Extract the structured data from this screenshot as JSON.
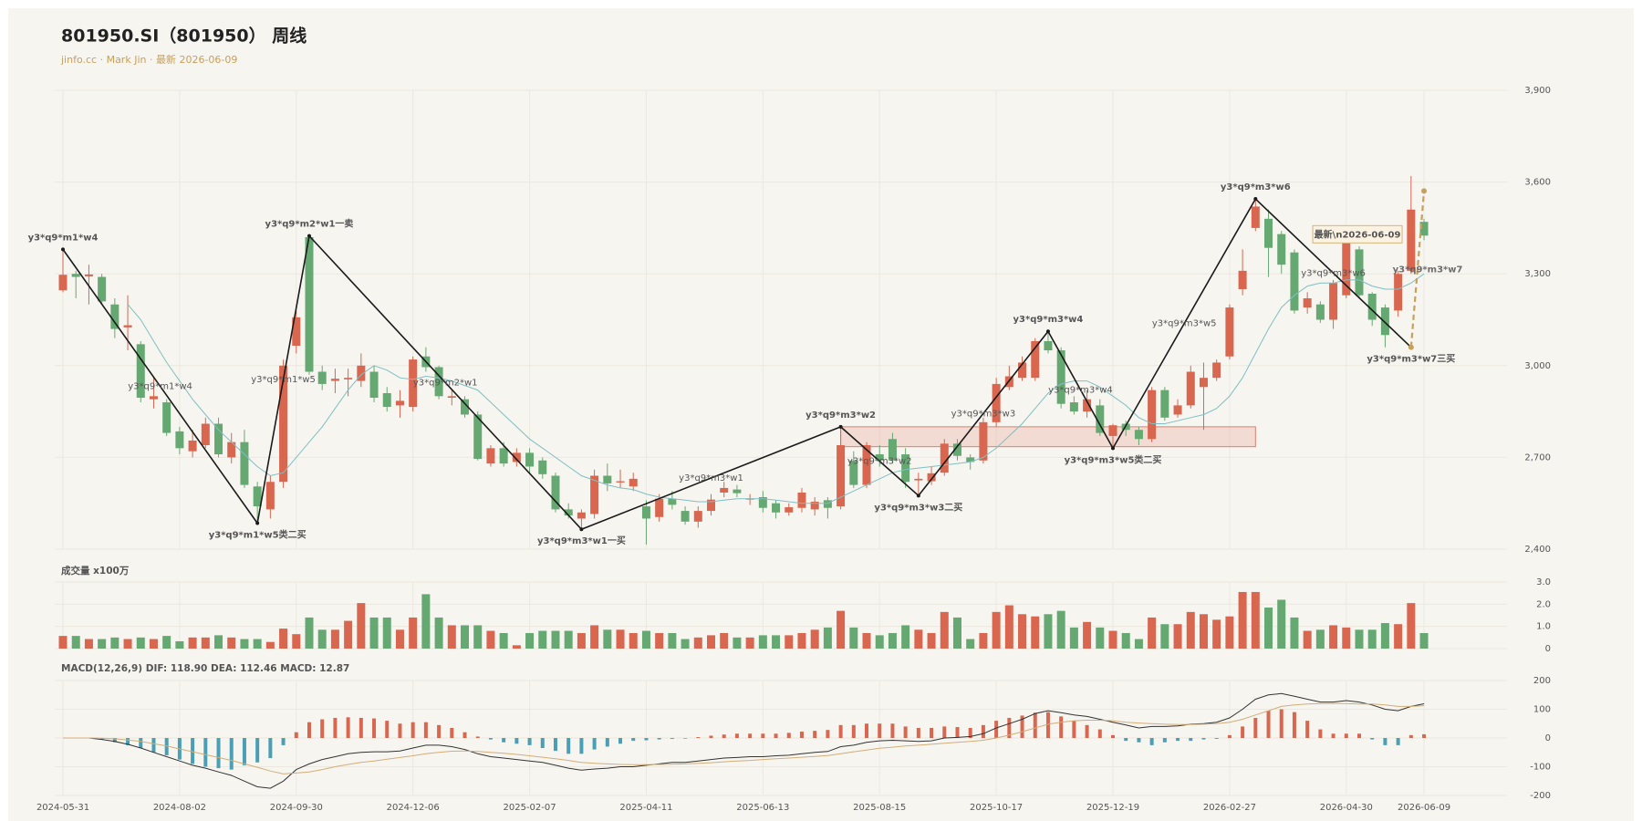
{
  "chart_data": {
    "type": "candlestick",
    "title": "801950.SI（801950） 周线",
    "subtitle": "jinfo.cc · Mark Jin · 最新 2026-06-09",
    "categories": [
      "2024-05-31",
      null,
      null,
      null,
      null,
      null,
      null,
      null,
      null,
      "2024-08-02",
      null,
      null,
      null,
      null,
      null,
      null,
      null,
      null,
      "2024-09-30",
      null,
      null,
      null,
      null,
      null,
      null,
      null,
      null,
      "2024-12-06",
      null,
      null,
      null,
      null,
      null,
      null,
      null,
      null,
      "2025-02-07",
      null,
      null,
      null,
      null,
      null,
      null,
      null,
      null,
      "2025-04-11",
      null,
      null,
      null,
      null,
      null,
      null,
      null,
      null,
      "2025-06-13",
      null,
      null,
      null,
      null,
      null,
      null,
      null,
      null,
      "2025-08-15",
      null,
      null,
      null,
      null,
      null,
      null,
      null,
      null,
      "2025-10-17",
      null,
      null,
      null,
      null,
      null,
      null,
      null,
      null,
      "2025-12-19",
      null,
      null,
      null,
      null,
      null,
      null,
      null,
      null,
      "2026-02-27",
      null,
      null,
      null,
      null,
      null,
      null,
      null,
      null,
      "2026-04-30",
      null,
      null,
      null,
      null,
      null,
      "2026-06-09"
    ],
    "open": [
      3246,
      3300,
      3292,
      3290,
      3200,
      3125,
      3070,
      2890,
      2880,
      2785,
      2720,
      2740,
      2810,
      2700,
      2750,
      2605,
      2530,
      2620,
      3065,
      3420,
      2980,
      2950,
      2955,
      2950,
      2980,
      2910,
      2870,
      2865,
      3030,
      2995,
      2895,
      2890,
      2840,
      2680,
      2730,
      2685,
      2715,
      2690,
      2640,
      2530,
      2500,
      2515,
      2640,
      2618,
      2605,
      2540,
      2505,
      2565,
      2525,
      2490,
      2525,
      2585,
      2595,
      2562,
      2570,
      2550,
      2520,
      2535,
      2530,
      2560,
      2540,
      2690,
      2610,
      2710,
      2760,
      2710,
      2625,
      2622,
      2650,
      2745,
      2700,
      2690,
      2815,
      2930,
      2960,
      2960,
      3080,
      3050,
      2880,
      2850,
      2870,
      2770,
      2810,
      2790,
      2760,
      2920,
      2840,
      2870,
      2930,
      2960,
      3030,
      3250,
      3450,
      3480,
      3430,
      3370,
      3190,
      3200,
      3150,
      3230,
      3380,
      3235,
      3190,
      3180,
      3310,
      3470
    ],
    "high": [
      3380,
      3310,
      3330,
      3300,
      3220,
      3230,
      3080,
      2960,
      2890,
      2800,
      2790,
      2830,
      2830,
      2780,
      2790,
      2620,
      2640,
      3020,
      3180,
      3424,
      3000,
      2990,
      2990,
      3040,
      3000,
      2930,
      2920,
      3030,
      3060,
      3000,
      2920,
      2900,
      2850,
      2740,
      2750,
      2730,
      2730,
      2700,
      2650,
      2550,
      2530,
      2660,
      2680,
      2660,
      2650,
      2560,
      2580,
      2590,
      2540,
      2540,
      2580,
      2620,
      2610,
      2580,
      2590,
      2560,
      2550,
      2600,
      2570,
      2570,
      2800,
      2720,
      2750,
      2740,
      2780,
      2730,
      2650,
      2670,
      2760,
      2760,
      2710,
      2830,
      2960,
      3000,
      3030,
      3090,
      3112,
      3060,
      2900,
      2920,
      2890,
      2810,
      2820,
      2800,
      2930,
      2930,
      2890,
      3000,
      3010,
      3020,
      3200,
      3380,
      3545,
      3510,
      3440,
      3380,
      3240,
      3210,
      3280,
      3410,
      3390,
      3240,
      3200,
      3310,
      3620,
      3480
    ],
    "low": [
      3240,
      3220,
      3200,
      3200,
      3090,
      3050,
      2880,
      2860,
      2770,
      2710,
      2700,
      2730,
      2700,
      2680,
      2600,
      2485,
      2500,
      2600,
      3040,
      2970,
      2920,
      2910,
      2900,
      2930,
      2880,
      2850,
      2830,
      2850,
      2980,
      2890,
      2870,
      2830,
      2690,
      2670,
      2670,
      2670,
      2650,
      2630,
      2520,
      2500,
      2465,
      2500,
      2590,
      2600,
      2590,
      2415,
      2490,
      2530,
      2480,
      2470,
      2510,
      2570,
      2570,
      2545,
      2520,
      2500,
      2510,
      2520,
      2510,
      2500,
      2530,
      2600,
      2600,
      2670,
      2680,
      2600,
      2575,
      2610,
      2640,
      2690,
      2660,
      2680,
      2800,
      2920,
      2950,
      2950,
      3040,
      2860,
      2840,
      2830,
      2770,
      2730,
      2770,
      2740,
      2750,
      2820,
      2830,
      2860,
      2790,
      2950,
      3020,
      3230,
      3440,
      3290,
      3300,
      3170,
      3170,
      3140,
      3120,
      3220,
      3220,
      3130,
      3060,
      3160,
      3300,
      3410
    ],
    "close": [
      3297,
      3290,
      3298,
      3210,
      3120,
      3132,
      2895,
      2900,
      2780,
      2730,
      2755,
      2810,
      2710,
      2750,
      2610,
      2540,
      2620,
      3000,
      3158,
      2980,
      2940,
      2957,
      2960,
      3000,
      2895,
      2865,
      2885,
      3020,
      2995,
      2900,
      2900,
      2840,
      2695,
      2730,
      2680,
      2715,
      2670,
      2645,
      2530,
      2510,
      2520,
      2640,
      2615,
      2622,
      2630,
      2500,
      2565,
      2545,
      2490,
      2525,
      2562,
      2600,
      2583,
      2566,
      2535,
      2520,
      2537,
      2585,
      2555,
      2535,
      2740,
      2610,
      2740,
      2690,
      2690,
      2620,
      2630,
      2648,
      2745,
      2705,
      2685,
      2815,
      2940,
      2965,
      3010,
      3080,
      3050,
      2875,
      2850,
      2890,
      2780,
      2805,
      2790,
      2760,
      2920,
      2830,
      2870,
      2980,
      2960,
      3010,
      3190,
      3310,
      3520,
      3385,
      3330,
      3180,
      3220,
      3150,
      3270,
      3400,
      3230,
      3150,
      3100,
      3300,
      3510,
      3425
    ],
    "up_color": "#d9664f",
    "down_color": "#66a872",
    "ylim": [
      2400,
      3900
    ],
    "yticks": [
      {
        "value": 2400,
        "label": "2,400"
      },
      {
        "value": 2700,
        "label": "2,700"
      },
      {
        "value": 3000,
        "label": "3,000"
      },
      {
        "value": 3300,
        "label": "3,300"
      },
      {
        "value": 3600,
        "label": "3,600"
      },
      {
        "value": 3900,
        "label": "3,900"
      }
    ],
    "ma": {
      "color": "#7fbfc3",
      "values": [
        null,
        null,
        null,
        null,
        null,
        3200,
        3150,
        3080,
        3010,
        2950,
        2890,
        2840,
        2790,
        2750,
        2710,
        2670,
        2640,
        2650,
        2700,
        2750,
        2800,
        2860,
        2920,
        2970,
        3000,
        2985,
        2960,
        2955,
        2965,
        2960,
        2950,
        2935,
        2920,
        2880,
        2840,
        2800,
        2760,
        2730,
        2700,
        2670,
        2640,
        2625,
        2610,
        2600,
        2595,
        2580,
        2570,
        2565,
        2560,
        2555,
        2555,
        2560,
        2565,
        2565,
        2565,
        2560,
        2555,
        2550,
        2550,
        2550,
        2570,
        2590,
        2610,
        2630,
        2650,
        2660,
        2665,
        2670,
        2675,
        2680,
        2685,
        2700,
        2730,
        2770,
        2810,
        2860,
        2910,
        2940,
        2950,
        2950,
        2930,
        2900,
        2870,
        2830,
        2810,
        2810,
        2820,
        2830,
        2840,
        2860,
        2900,
        2960,
        3040,
        3120,
        3190,
        3230,
        3260,
        3270,
        3270,
        3280,
        3280,
        3260,
        3250,
        3250,
        3270,
        3300
      ]
    },
    "zigzag": {
      "color": "#1a1a1a",
      "label_color": "#c9a05a",
      "segment_label_color": "#444444",
      "values": [
        3380,
        null,
        null,
        null,
        null,
        null,
        null,
        null,
        null,
        null,
        null,
        null,
        null,
        null,
        null,
        2485,
        null,
        null,
        null,
        3424,
        null,
        null,
        null,
        null,
        null,
        null,
        null,
        null,
        null,
        null,
        null,
        null,
        null,
        null,
        null,
        null,
        null,
        null,
        null,
        null,
        2465,
        null,
        null,
        null,
        null,
        null,
        null,
        null,
        null,
        null,
        null,
        null,
        null,
        null,
        null,
        null,
        null,
        null,
        null,
        null,
        2800,
        null,
        null,
        null,
        null,
        null,
        2575,
        null,
        null,
        null,
        null,
        null,
        null,
        null,
        null,
        null,
        3112,
        null,
        null,
        null,
        null,
        2730,
        null,
        null,
        null,
        null,
        null,
        null,
        null,
        null,
        null,
        null,
        3545,
        null,
        null,
        null,
        null,
        null,
        null,
        null,
        null,
        null,
        null,
        null,
        3060,
        null,
        null,
        null
      ],
      "labels": [
        "y3*q9*m1*w4",
        null,
        null,
        null,
        null,
        null,
        null,
        null,
        null,
        null,
        null,
        null,
        null,
        null,
        null,
        "y3*q9*m1*w5类二买",
        null,
        null,
        null,
        "y3*q9*m2*w1一卖",
        null,
        null,
        null,
        null,
        null,
        null,
        null,
        null,
        null,
        null,
        null,
        null,
        null,
        null,
        null,
        null,
        null,
        null,
        null,
        null,
        "y3*q9*m3*w1一买",
        null,
        null,
        null,
        null,
        null,
        null,
        null,
        null,
        null,
        null,
        null,
        null,
        null,
        null,
        null,
        null,
        null,
        null,
        null,
        "y3*q9*m3*w2",
        null,
        null,
        null,
        null,
        null,
        "y3*q9*m3*w3二买",
        null,
        null,
        null,
        null,
        null,
        null,
        null,
        null,
        null,
        "y3*q9*m3*w4",
        null,
        null,
        null,
        null,
        "y3*q9*m3*w5类二买",
        null,
        null,
        null,
        null,
        null,
        null,
        null,
        null,
        null,
        null,
        "y3*q9*m3*w6",
        null,
        null,
        null,
        null,
        null,
        null,
        null,
        null,
        null,
        null,
        null,
        "y3*q9*m3*w7三买",
        null,
        null,
        null
      ],
      "segment_labels": [
        "y3*q9*m1*w4",
        "y3*q9*m1*w5",
        "y3*q9*m2*w1",
        "y3*q9*m3*w1",
        "y3*q9*m3*w2",
        "y3*q9*m3*w3",
        "y3*q9*m3*w4",
        "y3*q9*m3*w5",
        "y3*q9*m3*w6"
      ],
      "projection": {
        "value": 3571,
        "label": "y3*q9*m3*w7",
        "color": "#c9a05a"
      }
    },
    "zone": {
      "high": 2800,
      "low": 2735,
      "color": "#e07f6b"
    },
    "latest_label": "最新\\n2026-06-09",
    "volume": {
      "title": "成交量 x100万",
      "values": [
        0.57,
        0.57,
        0.43,
        0.43,
        0.5,
        0.43,
        0.5,
        0.43,
        0.57,
        0.33,
        0.5,
        0.5,
        0.6,
        0.5,
        0.43,
        0.43,
        0.3,
        0.9,
        0.65,
        1.4,
        0.85,
        0.85,
        1.25,
        2.05,
        1.4,
        1.4,
        0.85,
        1.4,
        2.45,
        1.4,
        1.05,
        1.05,
        1.05,
        0.8,
        0.7,
        0.15,
        0.7,
        0.8,
        0.8,
        0.8,
        0.7,
        1.05,
        0.85,
        0.85,
        0.7,
        0.8,
        0.7,
        0.7,
        0.43,
        0.5,
        0.6,
        0.7,
        0.5,
        0.5,
        0.6,
        0.6,
        0.6,
        0.7,
        0.85,
        0.95,
        1.7,
        0.95,
        0.7,
        0.6,
        0.7,
        1.05,
        0.85,
        0.7,
        1.65,
        1.4,
        0.43,
        0.7,
        1.65,
        1.95,
        1.55,
        1.45,
        1.55,
        1.7,
        0.95,
        1.2,
        0.95,
        0.8,
        0.7,
        0.43,
        1.4,
        1.1,
        1.1,
        1.65,
        1.55,
        1.3,
        1.45,
        2.55,
        2.55,
        1.85,
        2.2,
        1.4,
        0.8,
        0.85,
        1.05,
        0.95,
        0.85,
        0.85,
        1.15,
        1.1,
        2.05,
        0.7
      ],
      "ylim": [
        0,
        3
      ],
      "yticks": [
        0,
        {
          "value": 1,
          "label": "1.0"
        },
        {
          "value": 2,
          "label": "2.0"
        },
        {
          "value": 3,
          "label": "3.0"
        }
      ]
    },
    "macd": {
      "title": "MACD(12,26,9) DIF: 118.90 DEA: 112.46 MACD: 12.87",
      "positive_color": "#d9664f",
      "negative_color": "#4a9fb5",
      "hist": [
        0,
        0,
        0,
        -5,
        -15,
        -25,
        -35,
        -50,
        -60,
        -75,
        -90,
        -100,
        -105,
        -110,
        -95,
        -85,
        -70,
        -25,
        20,
        55,
        65,
        70,
        72,
        70,
        68,
        60,
        50,
        55,
        55,
        45,
        35,
        20,
        5,
        -5,
        -15,
        -20,
        -25,
        -35,
        -45,
        -55,
        -55,
        -40,
        -30,
        -20,
        -10,
        -8,
        -5,
        -3,
        -2,
        3,
        8,
        12,
        15,
        15,
        15,
        15,
        18,
        22,
        25,
        28,
        45,
        45,
        50,
        50,
        50,
        40,
        35,
        35,
        40,
        38,
        35,
        45,
        60,
        70,
        78,
        88,
        90,
        75,
        60,
        45,
        30,
        10,
        -10,
        -15,
        -25,
        -15,
        -10,
        -10,
        -5,
        -3,
        10,
        40,
        70,
        95,
        100,
        90,
        60,
        30,
        15,
        15,
        15,
        -5,
        -25,
        -25,
        10,
        12.87
      ],
      "dif": {
        "color": "#333333",
        "values": [
          0,
          0,
          0,
          -5,
          -12,
          -22,
          -35,
          -50,
          -65,
          -80,
          -95,
          -105,
          -118,
          -130,
          -150,
          -170,
          -175,
          -150,
          -110,
          -90,
          -75,
          -65,
          -55,
          -50,
          -48,
          -48,
          -45,
          -35,
          -25,
          -25,
          -30,
          -40,
          -55,
          -65,
          -70,
          -75,
          -80,
          -85,
          -95,
          -105,
          -112,
          -108,
          -105,
          -100,
          -100,
          -95,
          -90,
          -85,
          -85,
          -80,
          -75,
          -70,
          -68,
          -65,
          -65,
          -62,
          -60,
          -55,
          -50,
          -47,
          -30,
          -25,
          -15,
          -10,
          -8,
          -10,
          -12,
          -10,
          0,
          2,
          5,
          15,
          35,
          50,
          65,
          85,
          95,
          88,
          80,
          75,
          65,
          55,
          45,
          35,
          40,
          40,
          42,
          48,
          50,
          55,
          70,
          100,
          135,
          150,
          155,
          145,
          135,
          125,
          125,
          130,
          125,
          115,
          100,
          95,
          110,
          118.9
        ]
      },
      "dea": {
        "color": "#d3ad78",
        "values": [
          0,
          0,
          0,
          -1,
          -3,
          -7,
          -12,
          -20,
          -28,
          -38,
          -48,
          -58,
          -68,
          -78,
          -90,
          -102,
          -115,
          -125,
          -122,
          -118,
          -110,
          -100,
          -92,
          -85,
          -80,
          -74,
          -68,
          -62,
          -55,
          -50,
          -46,
          -45,
          -47,
          -50,
          -53,
          -57,
          -62,
          -67,
          -72,
          -78,
          -85,
          -88,
          -90,
          -92,
          -93,
          -93,
          -92,
          -91,
          -90,
          -88,
          -86,
          -83,
          -80,
          -78,
          -75,
          -72,
          -70,
          -67,
          -64,
          -61,
          -55,
          -48,
          -42,
          -36,
          -32,
          -28,
          -25,
          -22,
          -18,
          -15,
          -12,
          -8,
          0,
          10,
          22,
          35,
          48,
          55,
          60,
          62,
          62,
          60,
          55,
          52,
          50,
          48,
          47,
          47,
          48,
          50,
          55,
          65,
          80,
          95,
          110,
          115,
          118,
          120,
          120,
          120,
          118,
          118,
          115,
          110,
          110,
          112.46
        ]
      },
      "ylim": [
        -200,
        200
      ],
      "yticks": [
        -200,
        -100,
        0,
        100,
        200
      ]
    }
  }
}
